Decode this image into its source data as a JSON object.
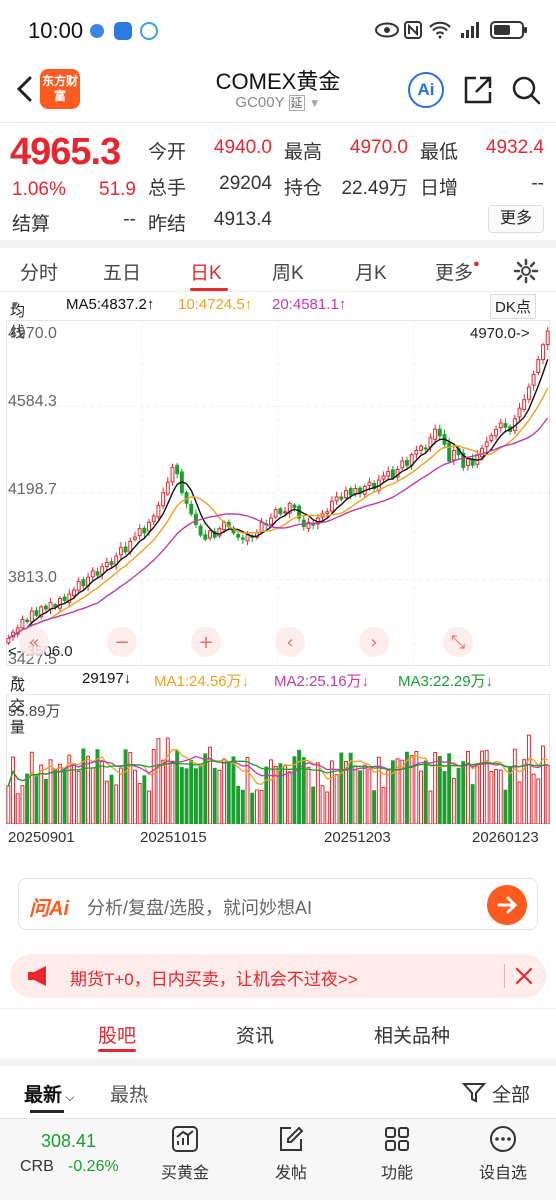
{
  "status_bar": {
    "time": "10:00"
  },
  "header": {
    "logo_text": "东方财富",
    "title": "COMEX黄金",
    "code": "GC00Y",
    "delay_badge": "延",
    "ai_label": "Ai"
  },
  "quote": {
    "price": "4965.3",
    "change_pct": "1.06%",
    "change": "51.9",
    "open_label": "今开",
    "open": "4940.0",
    "high_label": "最高",
    "high": "4970.0",
    "low_label": "最低",
    "low": "4932.4",
    "volume_label": "总手",
    "volume": "29204",
    "position_label": "持仓",
    "position": "22.49万",
    "daily_inc_label": "日增",
    "daily_inc": "--",
    "settle_label": "结算",
    "settle": "--",
    "prev_settle_label": "昨结",
    "prev_settle": "4913.4",
    "more_label": "更多"
  },
  "tabs": [
    {
      "label": "分时",
      "active": false
    },
    {
      "label": "五日",
      "active": false
    },
    {
      "label": "日K",
      "active": true
    },
    {
      "label": "周K",
      "active": false
    },
    {
      "label": "月K",
      "active": false
    },
    {
      "label": "更多",
      "active": false
    }
  ],
  "ma": {
    "selector": "均线",
    "ma5": "MA5:4837.2↑",
    "ma10": "10:4724.5↑",
    "ma20": "20:4581.1↑",
    "dk": "DK点"
  },
  "colors": {
    "up": "#e8262f",
    "down": "#1a9e2e",
    "ma5": "#111111",
    "ma10": "#f0a020",
    "ma20": "#c03ab0",
    "vma3": "#1a9e2e",
    "accent": "#ff5a1f"
  },
  "chart_data": {
    "type": "candlestick",
    "y_ticks": [
      "4970.0",
      "4584.3",
      "4198.7",
      "3813.0",
      "3427.5"
    ],
    "ylim": [
      3427.5,
      4970.0
    ],
    "max_annotation": "4970.0->",
    "min_annotation": "<--3506.0",
    "volume": {
      "label": "成交量",
      "current": "29197↓",
      "ma1": "MA1:24.56万↓",
      "ma2": "MA2:25.16万↓",
      "ma3": "MA3:22.29万↓",
      "max_label": "55.89万"
    },
    "x_labels": [
      "20250901",
      "20251015",
      "20251203",
      "20260123"
    ],
    "closes": [
      3510,
      3540,
      3560,
      3600,
      3590,
      3640,
      3620,
      3660,
      3650,
      3680,
      3660,
      3700,
      3690,
      3720,
      3740,
      3780,
      3760,
      3800,
      3830,
      3810,
      3850,
      3870,
      3860,
      3900,
      3940,
      3920,
      3970,
      3990,
      4030,
      4010,
      4060,
      4090,
      4140,
      4200,
      4250,
      4320,
      4290,
      4200,
      4150,
      4100,
      4050,
      4000,
      3980,
      4020,
      3990,
      4030,
      4060,
      4040,
      4010,
      3990,
      3980,
      4000,
      3990,
      4010,
      4060,
      4050,
      4080,
      4120,
      4100,
      4110,
      4150,
      4130,
      4080,
      4040,
      4060,
      4050,
      4080,
      4100,
      4110,
      4160,
      4180,
      4170,
      4210,
      4190,
      4220,
      4200,
      4230,
      4250,
      4220,
      4260,
      4280,
      4300,
      4270,
      4310,
      4350,
      4330,
      4380,
      4400,
      4420,
      4410,
      4460,
      4500,
      4470,
      4430,
      4350,
      4400,
      4380,
      4320,
      4360,
      4330,
      4380,
      4410,
      4440,
      4470,
      4500,
      4530,
      4510,
      4490,
      4550,
      4600,
      4640,
      4700,
      4760,
      4830,
      4900,
      4965
    ]
  },
  "nav_buttons": [
    "«",
    "−",
    "+",
    "‹",
    "›",
    "⤡"
  ],
  "ai_box": {
    "logo": "问Ai",
    "placeholder": "分析/复盘/选股，就问妙想AI"
  },
  "promo": {
    "text": "期货T+0，日内买卖，让机会不过夜>>"
  },
  "sections": [
    {
      "label": "股吧",
      "active": true
    },
    {
      "label": "资讯",
      "active": false
    },
    {
      "label": "相关品种",
      "active": false
    }
  ],
  "sort": {
    "latest": "最新",
    "hottest": "最热",
    "filter": "全部"
  },
  "bottom_bar": {
    "ticker_value": "308.41",
    "ticker_name": "CRB",
    "ticker_change": "-0.26%",
    "items": [
      "买黄金",
      "发帖",
      "功能",
      "设自选"
    ]
  }
}
